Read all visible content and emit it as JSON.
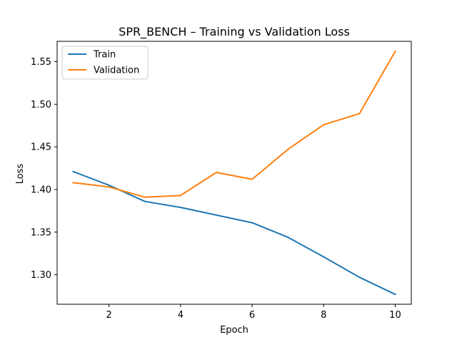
{
  "chart_data": {
    "type": "line",
    "title": "SPR_BENCH – Training vs Validation Loss",
    "xlabel": "Epoch",
    "ylabel": "Loss",
    "x": [
      1,
      2,
      3,
      4,
      5,
      6,
      7,
      8,
      9,
      10
    ],
    "xlim": [
      0.55,
      10.45
    ],
    "ylim": [
      1.2654,
      1.5738
    ],
    "xticks": [
      2,
      4,
      6,
      8,
      10
    ],
    "xtick_labels": [
      "2",
      "4",
      "6",
      "8",
      "10"
    ],
    "yticks": [
      1.3,
      1.35,
      1.4,
      1.45,
      1.5,
      1.55
    ],
    "ytick_labels": [
      "1.30",
      "1.35",
      "1.40",
      "1.45",
      "1.50",
      "1.55"
    ],
    "grid": false,
    "legend_position": "top-left",
    "series": [
      {
        "name": "Train",
        "color": "#1f77b4",
        "values": [
          1.421,
          1.405,
          1.386,
          1.379,
          1.37,
          1.361,
          1.344,
          1.321,
          1.297,
          1.277
        ]
      },
      {
        "name": "Validation",
        "color": "#ff7f0e",
        "values": [
          1.408,
          1.403,
          1.391,
          1.393,
          1.42,
          1.412,
          1.447,
          1.476,
          1.489,
          1.562
        ]
      }
    ]
  }
}
